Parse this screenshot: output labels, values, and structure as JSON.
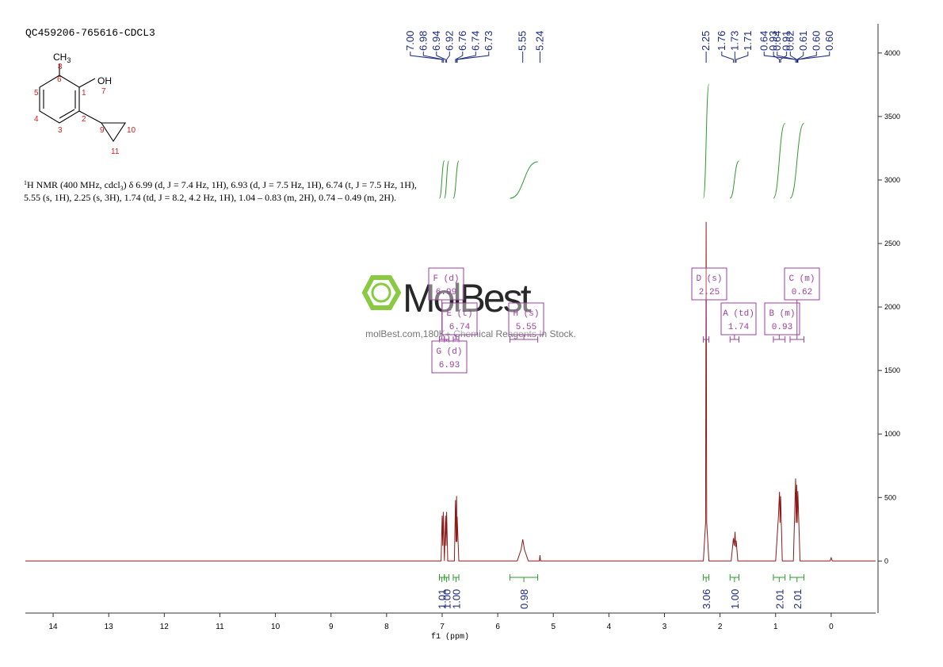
{
  "chart_data": {
    "type": "nmr",
    "title": "QC459206-765616-CDCL3",
    "molecule": {
      "methyl": [
        "CH",
        "3"
      ],
      "hydroxyl": "OH",
      "numbers": [
        "1",
        "2",
        "3",
        "4",
        "5",
        "6",
        "7",
        "8",
        "9",
        "10",
        "11"
      ]
    },
    "description": [
      "1",
      "H NMR (400 MHz, cdcl",
      "3",
      ") δ 6.99 (d, J = 7.4 Hz, 1H), 6.93 (d, J = 7.5 Hz, 1H), 6.74 (t, J = 7.5 Hz, 1H),",
      "5.55 (s, 1H), 2.25 (s, 3H), 1.74 (td, J = 8.2, 4.2 Hz, 1H), 1.04 – 0.83 (m, 2H), 0.74 – 0.49 (m, 2H)."
    ],
    "watermark": {
      "brand": "MolBest",
      "tagline": "molBest.com,180K+ Chemical Reagents In Stock."
    },
    "x_label": "f1 (ppm)",
    "xlim": [
      14.5,
      -0.8
    ],
    "xticks": [
      14,
      13,
      12,
      11,
      10,
      9,
      8,
      7,
      6,
      5,
      4,
      3,
      2,
      1,
      0
    ],
    "ylim": [
      -410,
      4230
    ],
    "yticks": [
      0,
      500,
      1000,
      1500,
      2000,
      2500,
      3000,
      3500,
      4000
    ],
    "color": "#8b1a1a",
    "x": [
      14.5,
      7.3,
      7.02,
      7.0,
      6.99,
      6.98,
      6.96,
      6.94,
      6.93,
      6.92,
      6.9,
      6.78,
      6.76,
      6.75,
      6.74,
      6.735,
      6.73,
      6.7,
      5.65,
      5.58,
      5.55,
      5.52,
      5.45,
      5.25,
      5.24,
      5.23,
      2.3,
      2.26,
      2.25,
      2.24,
      2.2,
      1.8,
      1.76,
      1.745,
      1.73,
      1.72,
      1.71,
      1.68,
      1.0,
      0.95,
      0.93,
      0.92,
      0.91,
      0.88,
      0.68,
      0.64,
      0.63,
      0.62,
      0.61,
      0.6,
      0.56,
      0.02,
      0.0,
      -0.02,
      -0.8
    ],
    "values": [
      0,
      0,
      0,
      356,
      120,
      387,
      0,
      356,
      120,
      387,
      0,
      0,
      480,
      150,
      512,
      150,
      350,
      0,
      0,
      90,
      170,
      90,
      0,
      0,
      45,
      0,
      0,
      300,
      2670,
      300,
      0,
      0,
      180,
      120,
      230,
      110,
      160,
      0,
      0,
      350,
      545,
      300,
      510,
      0,
      0,
      650,
      300,
      600,
      300,
      550,
      0,
      0,
      25,
      0,
      0
    ],
    "peak_labels": [
      {
        "value": 7.0,
        "label": "7.00"
      },
      {
        "value": 6.98,
        "label": "6.98"
      },
      {
        "value": 6.94,
        "label": "6.94"
      },
      {
        "value": 6.92,
        "label": "6.92"
      },
      {
        "value": 6.76,
        "label": "6.76"
      },
      {
        "value": 6.74,
        "label": "6.74"
      },
      {
        "value": 6.73,
        "label": "6.73"
      },
      {
        "value": 5.55,
        "label": "5.55"
      },
      {
        "value": 5.24,
        "label": "5.24"
      },
      {
        "value": 2.25,
        "label": "2.25"
      },
      {
        "value": 1.76,
        "label": "1.76"
      },
      {
        "value": 1.73,
        "label": "1.73"
      },
      {
        "value": 1.71,
        "label": "1.71"
      },
      {
        "value": 0.93,
        "label": "0.93"
      },
      {
        "value": 0.91,
        "label": "0.91"
      },
      {
        "value": 0.64,
        "label": "0.64"
      },
      {
        "value": 0.64,
        "label": "0.64"
      },
      {
        "value": 0.62,
        "label": "0.62"
      },
      {
        "value": 0.61,
        "label": "0.61"
      },
      {
        "value": 0.6,
        "label": "0.60"
      },
      {
        "value": 0.6,
        "label": "0.60"
      }
    ],
    "integrals": [
      {
        "range": [
          7.05,
          6.96
        ],
        "value": {
          "value": 1.01,
          "label": "1.01"
        }
      },
      {
        "range": [
          6.96,
          6.88
        ],
        "value": {
          "value": 1.0,
          "label": "1.00"
        }
      },
      {
        "range": [
          6.8,
          6.7
        ],
        "value": {
          "value": 1.0,
          "label": "1.00"
        }
      },
      {
        "range": [
          5.78,
          5.28
        ],
        "value": {
          "value": 0.98,
          "label": "0.98"
        }
      },
      {
        "range": [
          2.3,
          2.2
        ],
        "value": {
          "value": 3.06,
          "label": "3.06"
        }
      },
      {
        "range": [
          1.82,
          1.66
        ],
        "value": {
          "value": 1.0,
          "label": "1.00"
        }
      },
      {
        "range": [
          1.04,
          0.83
        ],
        "value": {
          "value": 2.01,
          "label": "2.01"
        }
      },
      {
        "range": [
          0.74,
          0.49
        ],
        "value": {
          "value": 2.01,
          "label": "2.01"
        }
      }
    ],
    "multiplets": [
      {
        "label": "A (td)",
        "shift": 1.74,
        "range": [
          1.82,
          1.66
        ]
      },
      {
        "label": "B (m)",
        "shift": 0.93,
        "range": [
          1.04,
          0.83
        ]
      },
      {
        "label": "C (m)",
        "shift": 0.62,
        "range": [
          0.74,
          0.49
        ]
      },
      {
        "label": "D (s)",
        "shift": 2.25,
        "range": [
          2.3,
          2.2
        ]
      },
      {
        "label": "E (t)",
        "shift": 6.74,
        "range": [
          6.8,
          6.7
        ]
      },
      {
        "label": "F (d)",
        "shift": 6.99,
        "range": [
          7.05,
          6.96
        ]
      },
      {
        "label": "G (d)",
        "shift": 6.93,
        "range": [
          6.96,
          6.88
        ]
      },
      {
        "label": "H (s)",
        "shift": 5.55,
        "range": [
          5.78,
          5.28
        ]
      }
    ]
  }
}
